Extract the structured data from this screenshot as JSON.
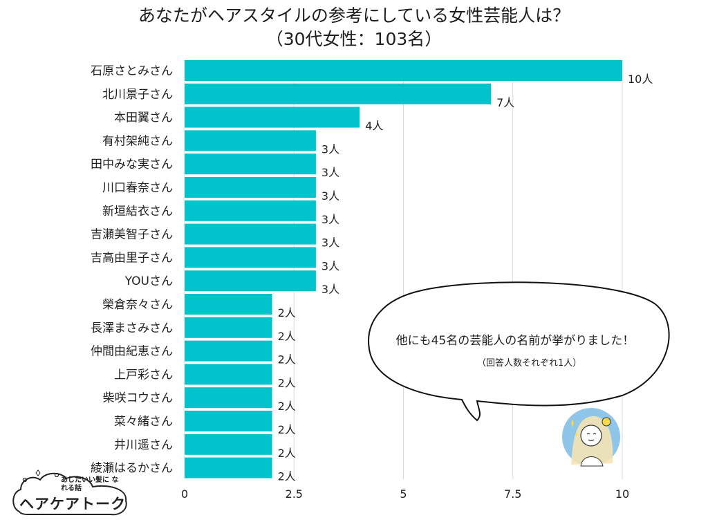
{
  "title_line1": "あなたがヘアスタイルの参考にしている女性芸能人は？",
  "title_line2": "（30代女性：103名）",
  "bubble": {
    "main": "他にも45名の芸能人の名前が挙がりました！",
    "sub": "（回答人数それぞれ1人）"
  },
  "logo": {
    "tagline": "あしたいい髪に なれる話",
    "name": "ヘアケアトーク"
  },
  "colors": {
    "bar": "#00c3cc",
    "grid": "#d9d9d9",
    "bubble_stroke": "#111111"
  },
  "chart_data": {
    "type": "bar",
    "orientation": "horizontal",
    "categories": [
      "石原さとみさん",
      "北川景子さん",
      "本田翼さん",
      "有村架純さん",
      "田中みな実さん",
      "川口春奈さん",
      "新垣結衣さん",
      "吉瀬美智子さん",
      "吉高由里子さん",
      "YOUさん",
      "榮倉奈々さん",
      "長澤まさみさん",
      "仲間由紀恵さん",
      "上戸彩さん",
      "柴咲コウさん",
      "菜々緒さん",
      "井川遥さん",
      "綾瀬はるかさん"
    ],
    "values": [
      10,
      7,
      4,
      3,
      3,
      3,
      3,
      3,
      3,
      3,
      2,
      2,
      2,
      2,
      2,
      2,
      2,
      2
    ],
    "value_labels": [
      "10人",
      "7人",
      "4人",
      "3人",
      "3人",
      "3人",
      "3人",
      "3人",
      "3人",
      "3人",
      "2人",
      "2人",
      "2人",
      "2人",
      "2人",
      "2人",
      "2人",
      "2人"
    ],
    "xlim": [
      0,
      10
    ],
    "xticks": [
      0,
      2.5,
      5,
      7.5,
      10
    ],
    "xtick_labels": [
      "0",
      "2.5",
      "5",
      "7.5",
      "10"
    ],
    "grid": true
  }
}
